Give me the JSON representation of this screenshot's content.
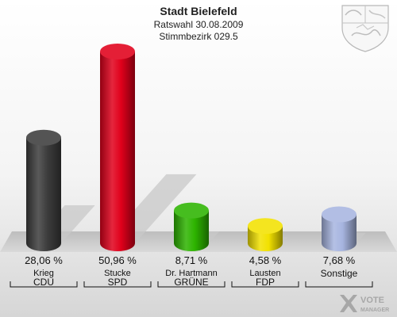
{
  "header": {
    "title": "Stadt Bielefeld",
    "subtitle": "Ratswahl 30.08.2009",
    "district": "Stimmbezirk 029.5"
  },
  "branding": {
    "logo_text": "VOTE",
    "logo_subtext": "MANAGER"
  },
  "chart_data": {
    "type": "bar",
    "title": "Stadt Bielefeld",
    "subtitle": "Ratswahl 30.08.2009 — Stimmbezirk 029.5",
    "categories": [
      "CDU",
      "SPD",
      "GRÜNE",
      "FDP",
      "Sonstige"
    ],
    "candidates": [
      "Krieg",
      "Stucke",
      "Dr. Hartmann",
      "Lausten",
      ""
    ],
    "values": [
      28.06,
      50.96,
      8.71,
      4.58,
      7.68
    ],
    "value_labels": [
      "28,06 %",
      "50,96 %",
      "8,71 %",
      "4,58 %",
      "7,68 %"
    ],
    "colors": [
      "#3d3d3d",
      "#e0001b",
      "#2db400",
      "#f2e100",
      "#a7b5e0"
    ],
    "ylim": [
      0,
      50.96
    ],
    "grid": false,
    "legend": "none"
  }
}
